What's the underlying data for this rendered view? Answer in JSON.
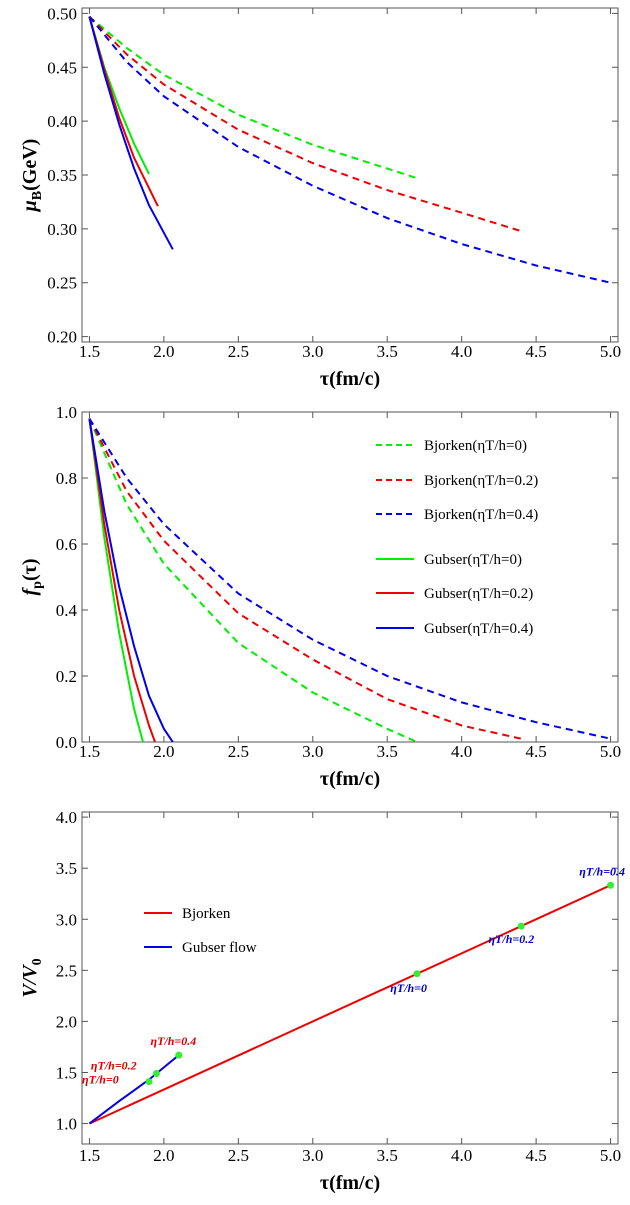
{
  "chart_data": [
    {
      "type": "line",
      "xlabel": "τ(fm/c)",
      "ylabel": "μB(GeV)",
      "ylabel_main": "μ",
      "ylabel_sub": "B",
      "ylabel_rest": "(GeV)",
      "xlim": [
        1.45,
        5.05
      ],
      "ylim": [
        0.195,
        0.505
      ],
      "xticks": [
        "1.5",
        "2.0",
        "2.5",
        "3.0",
        "3.5",
        "4.0",
        "4.5",
        "5.0"
      ],
      "yticks": [
        "0.20",
        "0.25",
        "0.30",
        "0.35",
        "0.40",
        "0.45",
        "0.50"
      ],
      "grid": false,
      "series": [
        {
          "color": "#00ee00",
          "dashed": true,
          "x": [
            1.5,
            1.75,
            2.0,
            2.5,
            3.0,
            3.5,
            3.7
          ],
          "y": [
            0.497,
            0.468,
            0.443,
            0.406,
            0.378,
            0.356,
            0.347
          ]
        },
        {
          "color": "#ee0000",
          "dashed": true,
          "x": [
            1.5,
            1.75,
            2.0,
            2.5,
            3.0,
            3.5,
            4.0,
            4.42
          ],
          "y": [
            0.497,
            0.462,
            0.434,
            0.392,
            0.361,
            0.336,
            0.315,
            0.297
          ]
        },
        {
          "color": "#0000ee",
          "dashed": true,
          "x": [
            1.5,
            1.75,
            2.0,
            2.5,
            3.0,
            3.5,
            4.0,
            4.5,
            5.0
          ],
          "y": [
            0.497,
            0.455,
            0.423,
            0.376,
            0.34,
            0.31,
            0.286,
            0.266,
            0.25
          ]
        },
        {
          "color": "#00ee00",
          "dashed": false,
          "x": [
            1.5,
            1.6,
            1.7,
            1.8,
            1.9
          ],
          "y": [
            0.497,
            0.45,
            0.412,
            0.379,
            0.351
          ]
        },
        {
          "color": "#ee0000",
          "dashed": false,
          "x": [
            1.5,
            1.6,
            1.7,
            1.8,
            1.96
          ],
          "y": [
            0.497,
            0.448,
            0.403,
            0.366,
            0.321
          ]
        },
        {
          "color": "#0000ee",
          "dashed": false,
          "x": [
            1.5,
            1.6,
            1.7,
            1.8,
            1.9,
            2.06
          ],
          "y": [
            0.497,
            0.444,
            0.397,
            0.356,
            0.322,
            0.281
          ]
        }
      ]
    },
    {
      "type": "line",
      "xlabel": "τ(fm/c)",
      "ylabel": "fp(τ)",
      "ylabel_main": "f",
      "ylabel_sub": "p",
      "ylabel_rest": "(τ)",
      "xlim": [
        1.45,
        5.05
      ],
      "ylim": [
        0.0,
        1.0
      ],
      "xticks": [
        "1.5",
        "2.0",
        "2.5",
        "3.0",
        "3.5",
        "4.0",
        "4.5",
        "5.0"
      ],
      "yticks": [
        "0.0",
        "0.2",
        "0.4",
        "0.6",
        "0.8",
        "1.0"
      ],
      "grid": false,
      "legend_position": "top-right",
      "series": [
        {
          "name": "Bjorken(ηT/h=0)",
          "color": "#00ee00",
          "dashed": true,
          "x": [
            1.5,
            1.75,
            2.0,
            2.5,
            3.0,
            3.5,
            3.7
          ],
          "y": [
            0.98,
            0.72,
            0.54,
            0.3,
            0.15,
            0.04,
            0.0
          ]
        },
        {
          "name": "Bjorken(ηT/h=0.2)",
          "color": "#ee0000",
          "dashed": true,
          "x": [
            1.5,
            1.75,
            2.0,
            2.5,
            3.0,
            3.5,
            4.0,
            4.4
          ],
          "y": [
            0.98,
            0.76,
            0.61,
            0.39,
            0.25,
            0.13,
            0.05,
            0.01
          ]
        },
        {
          "name": "Bjorken(ηT/h=0.4)",
          "color": "#0000ee",
          "dashed": true,
          "x": [
            1.5,
            1.75,
            2.0,
            2.5,
            3.0,
            3.5,
            4.0,
            4.5,
            5.0
          ],
          "y": [
            0.98,
            0.8,
            0.66,
            0.45,
            0.31,
            0.2,
            0.12,
            0.06,
            0.01
          ]
        },
        {
          "name": "Gubser(ηT/h=0)",
          "color": "#00ee00",
          "dashed": false,
          "x": [
            1.5,
            1.6,
            1.7,
            1.8,
            1.86
          ],
          "y": [
            0.98,
            0.62,
            0.33,
            0.1,
            0.0
          ]
        },
        {
          "name": "Gubser(ηT/h=0.2)",
          "color": "#ee0000",
          "dashed": false,
          "x": [
            1.5,
            1.6,
            1.7,
            1.8,
            1.9,
            1.94
          ],
          "y": [
            0.98,
            0.66,
            0.4,
            0.2,
            0.05,
            0.0
          ]
        },
        {
          "name": "Gubser(ηT/h=0.4)",
          "color": "#0000ee",
          "dashed": false,
          "x": [
            1.5,
            1.6,
            1.7,
            1.8,
            1.9,
            2.0,
            2.06
          ],
          "y": [
            0.98,
            0.7,
            0.47,
            0.29,
            0.14,
            0.04,
            0.0
          ]
        }
      ]
    },
    {
      "type": "line",
      "xlabel": "τ(fm/c)",
      "ylabel": "V/V0",
      "ylabel_main": "V/V",
      "ylabel_sub": "0",
      "ylabel_rest": "",
      "xlim": [
        1.45,
        5.05
      ],
      "ylim": [
        0.8,
        4.05
      ],
      "xticks": [
        "1.5",
        "2.0",
        "2.5",
        "3.0",
        "3.5",
        "4.0",
        "4.5",
        "5.0"
      ],
      "yticks": [
        "1.0",
        "1.5",
        "2.0",
        "2.5",
        "3.0",
        "3.5",
        "4.0"
      ],
      "grid": false,
      "legend_position": "top-left",
      "series": [
        {
          "name": "Bjorken",
          "color": "#ee0000",
          "dashed": false,
          "x": [
            1.5,
            5.0
          ],
          "y": [
            1.0,
            3.333
          ]
        },
        {
          "name": "Gubser flow",
          "color": "#0000ee",
          "dashed": false,
          "x": [
            1.5,
            1.7,
            1.9,
            2.1
          ],
          "y": [
            1.0,
            1.22,
            1.43,
            1.67
          ]
        }
      ],
      "points": [
        {
          "x": 1.9,
          "y": 1.41
        },
        {
          "x": 1.95,
          "y": 1.49
        },
        {
          "x": 2.1,
          "y": 1.67
        },
        {
          "x": 3.7,
          "y": 2.467
        },
        {
          "x": 4.4,
          "y": 2.933
        },
        {
          "x": 5.0,
          "y": 3.333
        }
      ],
      "point_color": "#33ee33",
      "annotations": [
        {
          "text": "ηT/h=0.4",
          "x": 1.91,
          "y": 1.77,
          "color": "#dd0000"
        },
        {
          "text": "ηT/h=0.2",
          "x": 1.51,
          "y": 1.53,
          "color": "#dd0000"
        },
        {
          "text": "ηT/h=0",
          "x": 1.45,
          "y": 1.39,
          "color": "#dd0000"
        },
        {
          "text": "ηT/h=0",
          "x": 3.52,
          "y": 2.29,
          "color": "#0000cc"
        },
        {
          "text": "ηT/h=0.2",
          "x": 4.18,
          "y": 2.77,
          "color": "#0000cc"
        },
        {
          "text": "ηT/h=0.4",
          "x": 4.79,
          "y": 3.43,
          "color": "#0000cc"
        }
      ]
    }
  ]
}
